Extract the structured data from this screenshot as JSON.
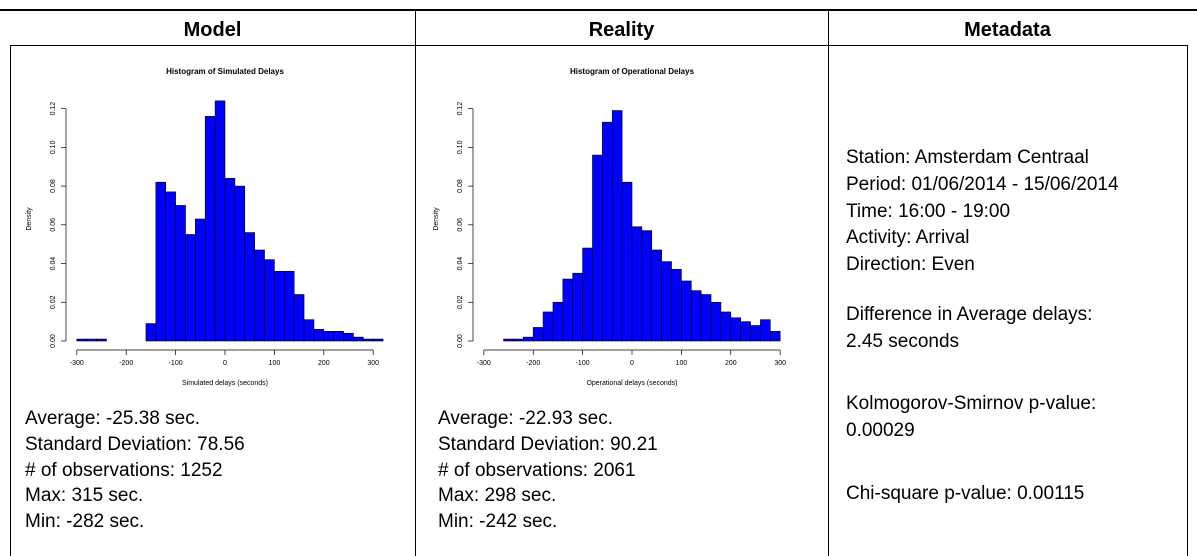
{
  "table": {
    "headers": [
      "Model",
      "Reality",
      "Metadata"
    ],
    "model_stats": [
      "Average: -25.38 sec.",
      "Standard Deviation: 78.56",
      "# of observations: 1252",
      "Max: 315 sec.",
      "Min: -282 sec."
    ],
    "reality_stats": [
      "Average: -22.93 sec.",
      "Standard Deviation: 90.21",
      "# of observations: 2061",
      "Max: 298 sec.",
      "Min: -242 sec."
    ],
    "metadata": [
      [
        "Station: Amsterdam Centraal",
        "Period: 01/06/2014 - 15/06/2014",
        "Time: 16:00 - 19:00",
        "Activity: Arrival",
        "Direction: Even"
      ],
      [
        "Difference in Average delays:",
        "2.45 seconds"
      ],
      [
        "Kolmogorov-Smirnov p-value:",
        "0.00029"
      ],
      [
        "Chi-square p-value: 0.00115"
      ]
    ]
  },
  "chart_data": [
    {
      "type": "histogram",
      "title": "Histogram of Simulated Delays",
      "x_label": "Simulated delays (seconds)",
      "y_label": "Density",
      "color": "#0000ff",
      "bins": [
        -300,
        -280,
        -260,
        -240,
        -220,
        -200,
        -180,
        -160,
        -140,
        -120,
        -100,
        -80,
        -60,
        -40,
        -20,
        0,
        20,
        40,
        60,
        80,
        100,
        120,
        140,
        160,
        180,
        200,
        220,
        240,
        260,
        280,
        300,
        320
      ],
      "values": [
        0.001,
        0.001,
        0.001,
        0,
        0,
        0,
        0,
        0.009,
        0.082,
        0.077,
        0.07,
        0.055,
        0.063,
        0.116,
        0.124,
        0.084,
        0.08,
        0.056,
        0.047,
        0.042,
        0.036,
        0.036,
        0.024,
        0.011,
        0.006,
        0.005,
        0.005,
        0.004,
        0.002,
        0.001,
        0.001
      ],
      "xlim": [
        -330,
        330
      ],
      "ylim": [
        0,
        0.126
      ],
      "xticks": [
        -300,
        -200,
        -100,
        0,
        100,
        200,
        300
      ],
      "yticks": [
        {
          "value": 0,
          "label": "0.00"
        },
        {
          "value": 0.02,
          "label": "0.02"
        },
        {
          "value": 0.04,
          "label": "0.04"
        },
        {
          "value": 0.06,
          "label": "0.06"
        },
        {
          "value": 0.08,
          "label": "0.08"
        },
        {
          "value": 0.1,
          "label": "0.10"
        },
        {
          "value": 0.12,
          "label": "0.12"
        }
      ]
    },
    {
      "type": "histogram",
      "title": "Histogram of Operational Delays",
      "x_label": "Operational delays (seconds)",
      "y_label": "Density",
      "color": "#0000ff",
      "bins": [
        -260,
        -240,
        -220,
        -200,
        -180,
        -160,
        -140,
        -120,
        -100,
        -80,
        -60,
        -40,
        -20,
        0,
        20,
        40,
        60,
        80,
        100,
        120,
        140,
        160,
        180,
        200,
        220,
        240,
        260,
        280,
        300
      ],
      "values": [
        0.001,
        0.001,
        0.002,
        0.007,
        0.015,
        0.02,
        0.032,
        0.035,
        0.048,
        0.096,
        0.113,
        0.119,
        0.082,
        0.059,
        0.057,
        0.047,
        0.041,
        0.037,
        0.031,
        0.026,
        0.024,
        0.02,
        0.015,
        0.012,
        0.01,
        0.008,
        0.011,
        0.005
      ],
      "xlim": [
        -330,
        330
      ],
      "ylim": [
        0,
        0.126
      ],
      "xticks": [
        -300,
        -200,
        -100,
        0,
        100,
        200,
        300
      ],
      "yticks": [
        {
          "value": 0,
          "label": "0.00"
        },
        {
          "value": 0.02,
          "label": "0.02"
        },
        {
          "value": 0.04,
          "label": "0.04"
        },
        {
          "value": 0.06,
          "label": "0.06"
        },
        {
          "value": 0.08,
          "label": "0.08"
        },
        {
          "value": 0.1,
          "label": "0.10"
        },
        {
          "value": 0.12,
          "label": "0.12"
        }
      ]
    }
  ]
}
